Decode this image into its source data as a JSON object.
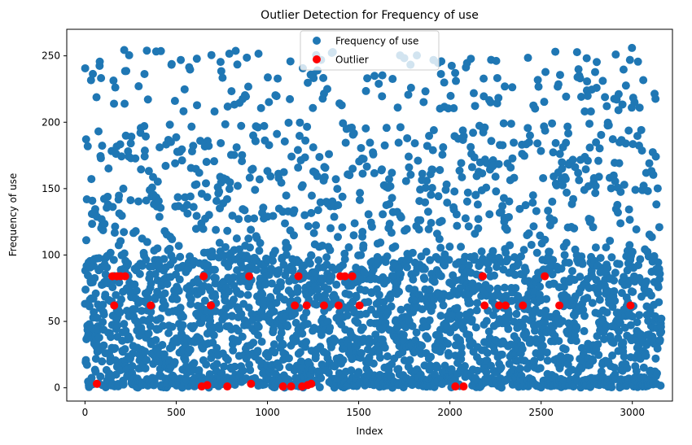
{
  "chart_data": {
    "type": "scatter",
    "title": "Outlier Detection for Frequency of use",
    "xlabel": "Index",
    "ylabel": "Frequency of use",
    "xlim": [
      -100,
      3220
    ],
    "ylim": [
      -10,
      270
    ],
    "xticks": [
      0,
      500,
      1000,
      1500,
      2000,
      2500,
      3000
    ],
    "yticks": [
      0,
      50,
      100,
      150,
      200,
      250
    ],
    "grid": false,
    "legend_position": "top-center",
    "series": [
      {
        "name": "Frequency of use",
        "color": "#1f77b4",
        "pattern": {
          "n": 3160,
          "value_bands": [
            [
              0,
              100,
              0.76
            ],
            [
              100,
              200,
              0.19
            ],
            [
              208,
              256,
              0.05
            ]
          ],
          "note_values": "dense cloud of 3160 points, values 0-256; densest below 100"
        }
      },
      {
        "name": "Outlier",
        "color": "#ff0000",
        "points": [
          [
            65,
            3
          ],
          [
            160,
            62
          ],
          [
            150,
            84
          ],
          [
            175,
            84
          ],
          [
            195,
            84
          ],
          [
            220,
            84
          ],
          [
            360,
            62
          ],
          [
            640,
            1
          ],
          [
            650,
            84
          ],
          [
            670,
            2
          ],
          [
            690,
            62
          ],
          [
            780,
            1
          ],
          [
            900,
            84
          ],
          [
            910,
            3
          ],
          [
            1085,
            1
          ],
          [
            1130,
            1
          ],
          [
            1150,
            62
          ],
          [
            1170,
            84
          ],
          [
            1190,
            1
          ],
          [
            1215,
            62
          ],
          [
            1220,
            2
          ],
          [
            1240,
            3
          ],
          [
            1310,
            62
          ],
          [
            1390,
            62
          ],
          [
            1400,
            84
          ],
          [
            1425,
            84
          ],
          [
            1465,
            84
          ],
          [
            1505,
            62
          ],
          [
            2030,
            1
          ],
          [
            2075,
            1
          ],
          [
            2180,
            84
          ],
          [
            2190,
            62
          ],
          [
            2270,
            62
          ],
          [
            2305,
            62
          ],
          [
            2400,
            62
          ],
          [
            2520,
            84
          ],
          [
            2600,
            62
          ],
          [
            2990,
            62
          ]
        ]
      }
    ]
  }
}
